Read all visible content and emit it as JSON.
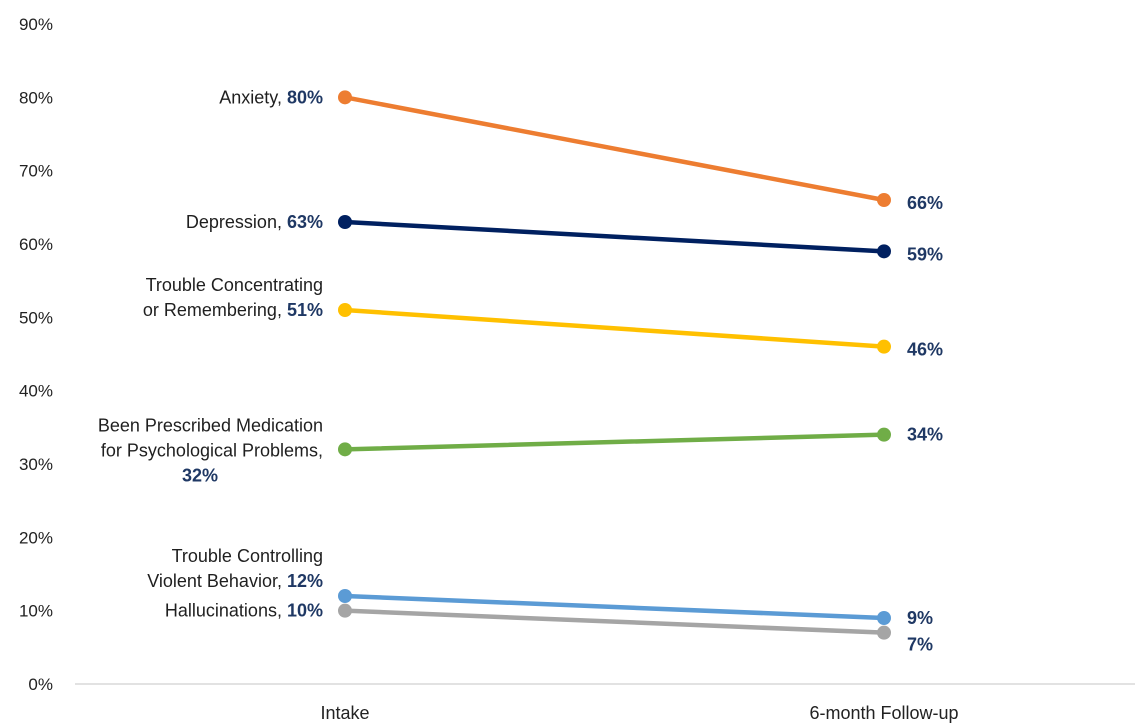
{
  "chart_data": {
    "type": "line",
    "categories": [
      "Intake",
      "6-month Follow-up"
    ],
    "ylim": [
      0,
      90
    ],
    "y_ticks": [
      "0%",
      "10%",
      "20%",
      "30%",
      "40%",
      "50%",
      "60%",
      "70%",
      "80%",
      "90%"
    ],
    "grid": false,
    "legend": "none",
    "series": [
      {
        "name": "Anxiety",
        "label_lines": [
          "Anxiety,"
        ],
        "values": [
          80,
          66
        ],
        "value_labels": [
          "80%",
          "66%"
        ],
        "color": "#ED7D31"
      },
      {
        "name": "Depression",
        "label_lines": [
          "Depression,"
        ],
        "values": [
          63,
          59
        ],
        "value_labels": [
          "63%",
          "59%"
        ],
        "color": "#002060"
      },
      {
        "name": "Trouble Concentrating or Remembering",
        "label_lines": [
          "Trouble Concentrating",
          "or Remembering,"
        ],
        "values": [
          51,
          46
        ],
        "value_labels": [
          "51%",
          "46%"
        ],
        "color": "#FFC000"
      },
      {
        "name": "Been Prescribed Medication for Psychological Problems",
        "label_lines": [
          "Been Prescribed Medication",
          "for Psychological Problems,"
        ],
        "values": [
          32,
          34
        ],
        "value_labels": [
          "32%",
          "34%"
        ],
        "color": "#70AD47"
      },
      {
        "name": "Trouble Controlling Violent Behavior",
        "label_lines": [
          "Trouble Controlling",
          "Violent Behavior,"
        ],
        "values": [
          12,
          9
        ],
        "value_labels": [
          "12%",
          "9%"
        ],
        "color": "#5B9BD5"
      },
      {
        "name": "Hallucinations",
        "label_lines": [
          "Hallucinations,"
        ],
        "values": [
          10,
          7
        ],
        "value_labels": [
          "10%",
          "7%"
        ],
        "color": "#A5A5A5"
      }
    ]
  }
}
